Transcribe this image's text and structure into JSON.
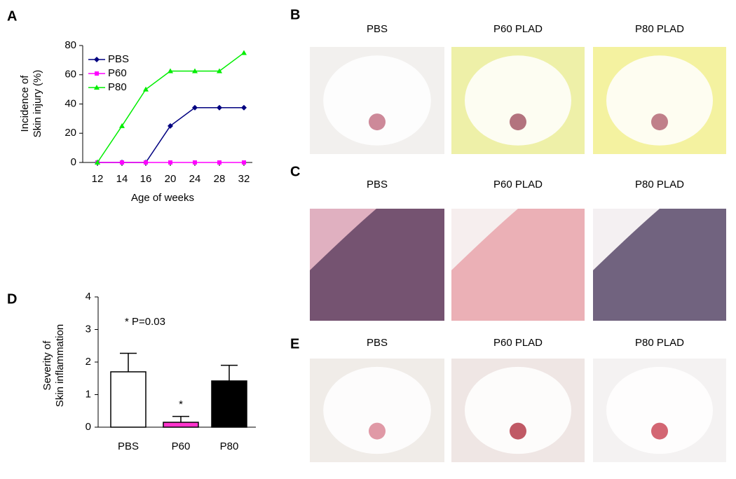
{
  "panel_labels": [
    "A",
    "B",
    "C",
    "D",
    "E"
  ],
  "photo_panels": [
    {
      "columns": [
        "PBS",
        "P60 PLAD",
        "P80 PLAD"
      ]
    },
    {
      "columns": [
        "PBS",
        "P60 PLAD",
        "P80 PLAD"
      ]
    },
    {
      "columns": [
        "PBS",
        "P60 PLAD",
        "P80 PLAD"
      ]
    }
  ],
  "chart_data": [
    {
      "type": "line",
      "categories": [
        "12",
        "14",
        "16",
        "20",
        "24",
        "28",
        "32"
      ],
      "xlabel": "Age of weeks",
      "ylabel": [
        "Incidence of",
        "Skin injury (%)"
      ],
      "ylim": [
        0,
        80
      ],
      "yticks": [
        0,
        20,
        40,
        60,
        80
      ],
      "legend": "upper-left",
      "series": [
        {
          "name": "PBS",
          "color": "#000080",
          "marker": "diamond",
          "values": [
            0,
            0,
            0,
            25,
            37.5,
            37.5,
            37.5
          ]
        },
        {
          "name": "P60",
          "color": "#ff00ff",
          "marker": "square",
          "values": [
            0,
            0,
            0,
            0,
            0,
            0,
            0
          ]
        },
        {
          "name": "P80",
          "color": "#00ee00",
          "marker": "triangle",
          "values": [
            0,
            25,
            50,
            62.5,
            62.5,
            62.5,
            75
          ]
        }
      ]
    },
    {
      "type": "bar",
      "categories": [
        "PBS",
        "P60",
        "P80"
      ],
      "ylabel": [
        "Severity of",
        "Skin inflammation"
      ],
      "ylim": [
        0,
        4
      ],
      "yticks": [
        0,
        1,
        2,
        3,
        4
      ],
      "values": [
        1.7,
        0.15,
        1.42
      ],
      "errors": [
        0.57,
        0.18,
        0.48
      ],
      "colors": [
        "#ffffff",
        "#ff33cc",
        "#000000"
      ],
      "annotations": [
        "* P=0.03",
        "*"
      ]
    }
  ]
}
